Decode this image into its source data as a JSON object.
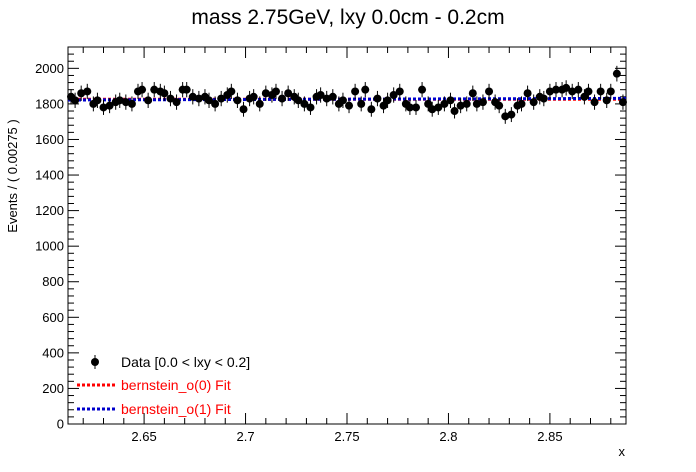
{
  "chart_data": {
    "type": "scatter",
    "title": "mass 2.75GeV, lxy 0.0cm - 0.2cm",
    "xlabel": "x",
    "ylabel": "Events / ( 0.00275 )",
    "xlim": [
      2.6125,
      2.8875
    ],
    "ylim": [
      0,
      2120
    ],
    "x_ticks": [
      "2.65",
      "2.7",
      "2.75",
      "2.8",
      "2.85"
    ],
    "x_tick_values": [
      2.65,
      2.7,
      2.75,
      2.8,
      2.85
    ],
    "y_ticks": [
      "0",
      "200",
      "400",
      "600",
      "800",
      "1000",
      "1200",
      "1400",
      "1600",
      "1800",
      "2000"
    ],
    "y_tick_values": [
      0,
      200,
      400,
      600,
      800,
      1000,
      1200,
      1400,
      1600,
      1800,
      2000
    ],
    "grid": false,
    "legend_position": "bottom-left",
    "series": [
      {
        "name": "Data [0.0 < lxy < 0.2]",
        "style": "markers-with-error-bars",
        "color": "#000000",
        "x": [
          2.614,
          2.616,
          2.619,
          2.622,
          2.625,
          2.627,
          2.63,
          2.633,
          2.636,
          2.638,
          2.641,
          2.644,
          2.647,
          2.649,
          2.652,
          2.655,
          2.658,
          2.66,
          2.663,
          2.666,
          2.669,
          2.671,
          2.674,
          2.677,
          2.68,
          2.682,
          2.685,
          2.688,
          2.691,
          2.693,
          2.696,
          2.699,
          2.702,
          2.704,
          2.707,
          2.71,
          2.713,
          2.715,
          2.718,
          2.721,
          2.724,
          2.726,
          2.729,
          2.732,
          2.735,
          2.737,
          2.74,
          2.743,
          2.746,
          2.748,
          2.751,
          2.754,
          2.757,
          2.759,
          2.762,
          2.765,
          2.768,
          2.77,
          2.773,
          2.776,
          2.779,
          2.781,
          2.784,
          2.787,
          2.79,
          2.792,
          2.795,
          2.798,
          2.801,
          2.803,
          2.806,
          2.809,
          2.812,
          2.814,
          2.817,
          2.82,
          2.823,
          2.825,
          2.828,
          2.831,
          2.834,
          2.836,
          2.839,
          2.842,
          2.845,
          2.847,
          2.85,
          2.853,
          2.856,
          2.858,
          2.861,
          2.864,
          2.867,
          2.869,
          2.872,
          2.875,
          2.878,
          2.88,
          2.883,
          2.886
        ],
        "y": [
          1840,
          1820,
          1860,
          1870,
          1800,
          1820,
          1780,
          1790,
          1810,
          1820,
          1810,
          1800,
          1870,
          1880,
          1820,
          1880,
          1870,
          1860,
          1830,
          1810,
          1880,
          1880,
          1840,
          1830,
          1840,
          1820,
          1800,
          1830,
          1850,
          1870,
          1820,
          1770,
          1830,
          1840,
          1800,
          1860,
          1850,
          1870,
          1830,
          1860,
          1840,
          1820,
          1800,
          1780,
          1840,
          1850,
          1830,
          1840,
          1800,
          1820,
          1790,
          1870,
          1800,
          1880,
          1770,
          1830,
          1790,
          1820,
          1850,
          1870,
          1800,
          1780,
          1780,
          1880,
          1800,
          1770,
          1780,
          1800,
          1820,
          1760,
          1790,
          1800,
          1860,
          1800,
          1810,
          1870,
          1810,
          1790,
          1730,
          1740,
          1790,
          1800,
          1860,
          1810,
          1840,
          1830,
          1870,
          1880,
          1880,
          1890,
          1870,
          1880,
          1840,
          1870,
          1810,
          1870,
          1820,
          1870,
          1970,
          1810
        ],
        "errors": [
          43,
          43,
          43,
          43,
          42,
          43,
          42,
          42,
          43,
          43,
          43,
          42,
          43,
          43,
          43,
          43,
          43,
          43,
          43,
          43,
          43,
          43,
          43,
          43,
          43,
          43,
          42,
          43,
          43,
          43,
          43,
          42,
          43,
          43,
          42,
          43,
          43,
          43,
          43,
          43,
          43,
          43,
          42,
          42,
          43,
          43,
          43,
          43,
          42,
          43,
          42,
          43,
          42,
          43,
          42,
          43,
          42,
          43,
          43,
          43,
          42,
          42,
          42,
          43,
          42,
          42,
          42,
          42,
          43,
          42,
          42,
          42,
          43,
          42,
          43,
          43,
          43,
          42,
          42,
          42,
          42,
          42,
          43,
          43,
          43,
          43,
          43,
          43,
          43,
          43,
          43,
          43,
          43,
          43,
          43,
          43,
          43,
          43,
          44,
          43
        ]
      },
      {
        "name": "bernstein_o(0) Fit",
        "style": "dotted-line",
        "color": "#ff0000",
        "x": [
          2.6125,
          2.8875
        ],
        "y": [
          1826,
          1826
        ]
      },
      {
        "name": "bernstein_o(1) Fit",
        "style": "dotted-line",
        "color": "#0000cc",
        "x": [
          2.6125,
          2.8875
        ],
        "y": [
          1822,
          1831
        ]
      }
    ]
  }
}
